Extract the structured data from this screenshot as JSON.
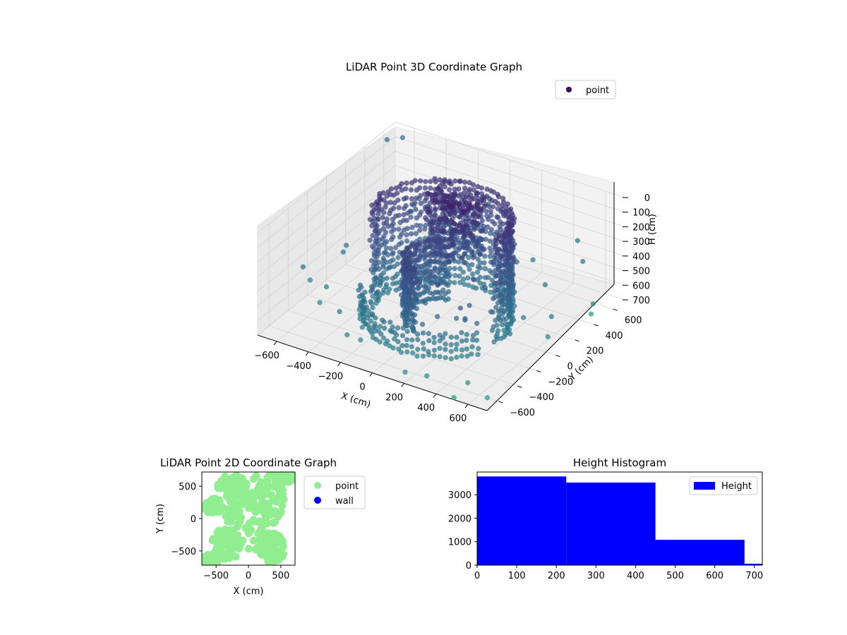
{
  "chart_data": [
    {
      "type": "scatter",
      "title": "LiDAR Point 3D Coordinate Graph",
      "xlabel": "X (cm)",
      "ylabel": "Y (cm)",
      "zlabel": "H (cm)",
      "xlim": [
        -720,
        720
      ],
      "ylim": [
        -720,
        720
      ],
      "zlim": [
        700,
        0
      ],
      "x_ticks": [
        "−600",
        "−400",
        "−200",
        "0",
        "200",
        "400",
        "600"
      ],
      "y_ticks": [
        "−600",
        "−400",
        "−200",
        "0",
        "200",
        "400",
        "600"
      ],
      "z_ticks": [
        "0",
        "100",
        "200",
        "300",
        "400",
        "500",
        "600",
        "700"
      ],
      "legend": [
        "point"
      ],
      "legend_position": "upper-right",
      "colormap": "viridis",
      "projection": "3d",
      "grid": true,
      "structures": [
        {
          "name": "curved wall",
          "shape": "arc",
          "radius": 380,
          "angle_range_deg": [
            -10,
            200
          ],
          "h_range": [
            0,
            700
          ]
        },
        {
          "name": "inner wall",
          "shape": "arc",
          "radius": 200,
          "angle_range_deg": [
            110,
            260
          ],
          "h_range": [
            300,
            700
          ]
        },
        {
          "name": "dense cluster",
          "shape": "blob",
          "center": [
            -60,
            250
          ],
          "h_range": [
            0,
            400
          ]
        },
        {
          "name": "front arc",
          "shape": "arc",
          "radius": 430,
          "angle_range_deg": [
            200,
            330
          ],
          "h_range": [
            550,
            700
          ]
        }
      ],
      "sample_points": [
        {
          "x": -700,
          "y": 600,
          "h": 50
        },
        {
          "x": -650,
          "y": 680,
          "h": 60
        },
        {
          "x": 650,
          "y": -600,
          "h": 700
        },
        {
          "x": 500,
          "y": -700,
          "h": 700
        },
        {
          "x": -600,
          "y": -200,
          "h": 600
        },
        {
          "x": 300,
          "y": -650,
          "h": 650
        }
      ]
    },
    {
      "type": "scatter",
      "title": "LiDAR Point 2D Coordinate Graph",
      "xlabel": "X (cm)",
      "ylabel": "Y (cm)",
      "xlim": [
        -720,
        720
      ],
      "ylim": [
        -720,
        720
      ],
      "x_ticks": [
        "−500",
        "0",
        "500"
      ],
      "y_ticks": [
        "−500",
        "0",
        "500"
      ],
      "legend": [
        "point",
        "wall"
      ],
      "legend_position": "outside right",
      "colors": {
        "point": "#90ee90",
        "wall": "#0000ff"
      },
      "grid": false
    },
    {
      "type": "bar",
      "title": "Height Histogram",
      "xlabel": "",
      "ylabel": "",
      "bin_edges": [
        0,
        225,
        450,
        675,
        720
      ],
      "values": [
        3780,
        3520,
        1080,
        60
      ],
      "series": [
        {
          "name": "Height",
          "values": [
            3780,
            3520,
            1080,
            60
          ]
        }
      ],
      "xlim": [
        0,
        720
      ],
      "ylim": [
        0,
        3969
      ],
      "x_ticks": [
        "0",
        "100",
        "200",
        "300",
        "400",
        "500",
        "600",
        "700"
      ],
      "y_ticks": [
        "0",
        "1000",
        "2000",
        "3000"
      ],
      "legend_position": "upper-right",
      "color": "#0000ff",
      "grid": false
    }
  ]
}
